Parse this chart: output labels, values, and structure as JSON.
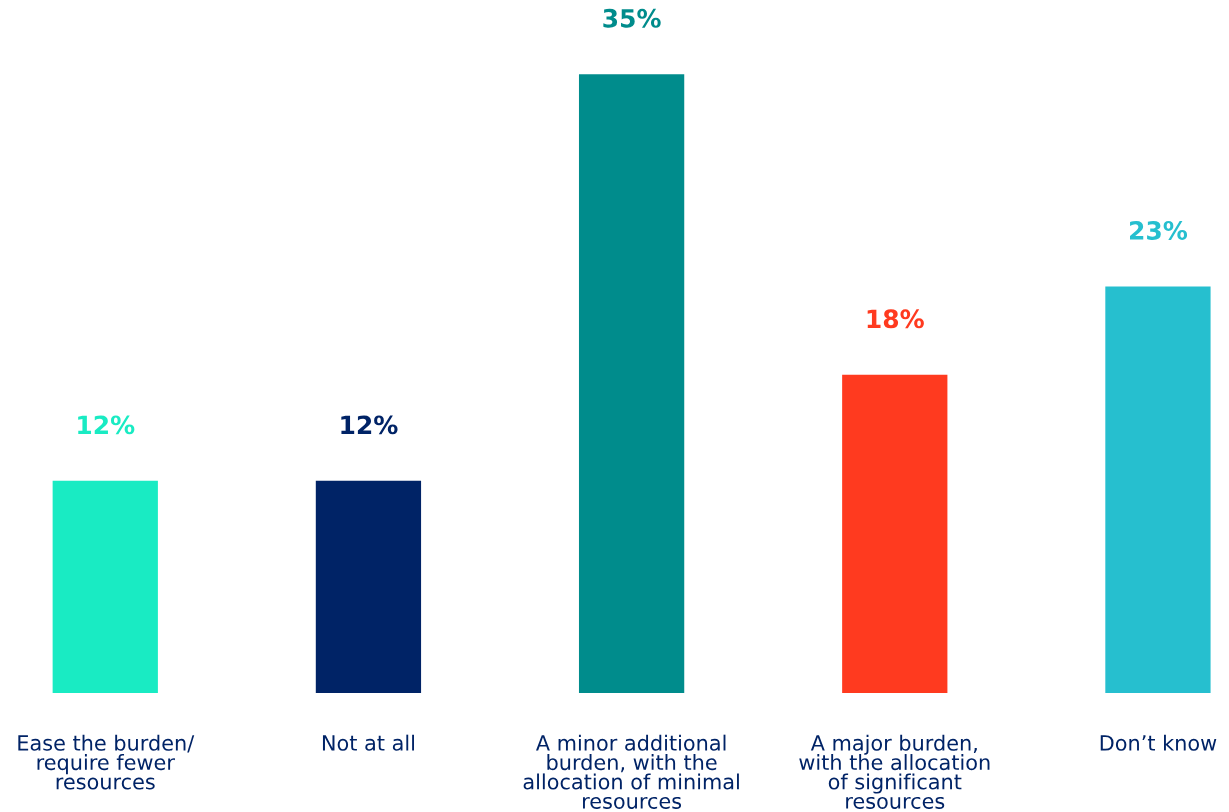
{
  "chart_data": {
    "type": "bar",
    "categories": [
      "Ease the burden/\nrequire fewer\nresources",
      "Not at all",
      "A minor additional\nburden, with the\nallocation of minimal\nresources",
      "A major burden,\nwith the allocation\nof significant\nresources",
      "Don’t know"
    ],
    "values": [
      12,
      12,
      35,
      18,
      23
    ],
    "colors": [
      "#19ebc3",
      "#002366",
      "#008c8c",
      "#ff3a1f",
      "#26bfcf"
    ],
    "value_labels": [
      "12%",
      "12%",
      "35%",
      "18%",
      "23%"
    ],
    "grid": false,
    "legend": false
  }
}
